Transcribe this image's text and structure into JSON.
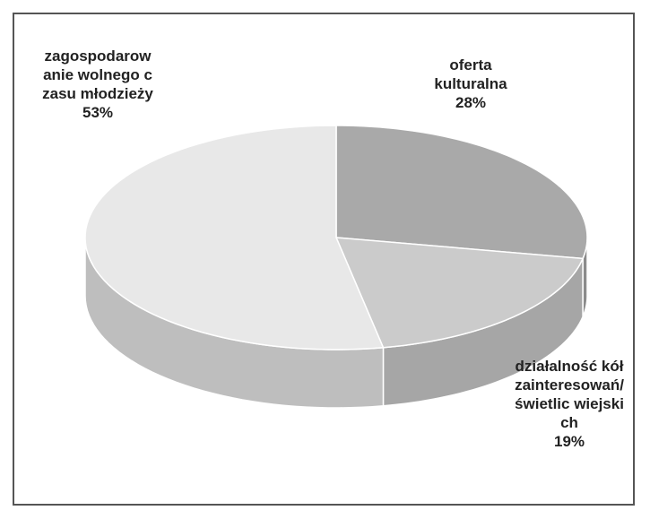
{
  "chart_data": {
    "type": "pie3d",
    "categories": [
      "oferta kulturalna",
      "działalność kół zainteresowań/świetlic wiejskich",
      "zagospodarowanie wolnego czasu młodzieży"
    ],
    "values": [
      28,
      19,
      53
    ],
    "value_labels": [
      "28%",
      "19%",
      "53%"
    ],
    "colors": [
      "#a9a9a9",
      "#cbcbcb",
      "#e8e8e8"
    ]
  }
}
